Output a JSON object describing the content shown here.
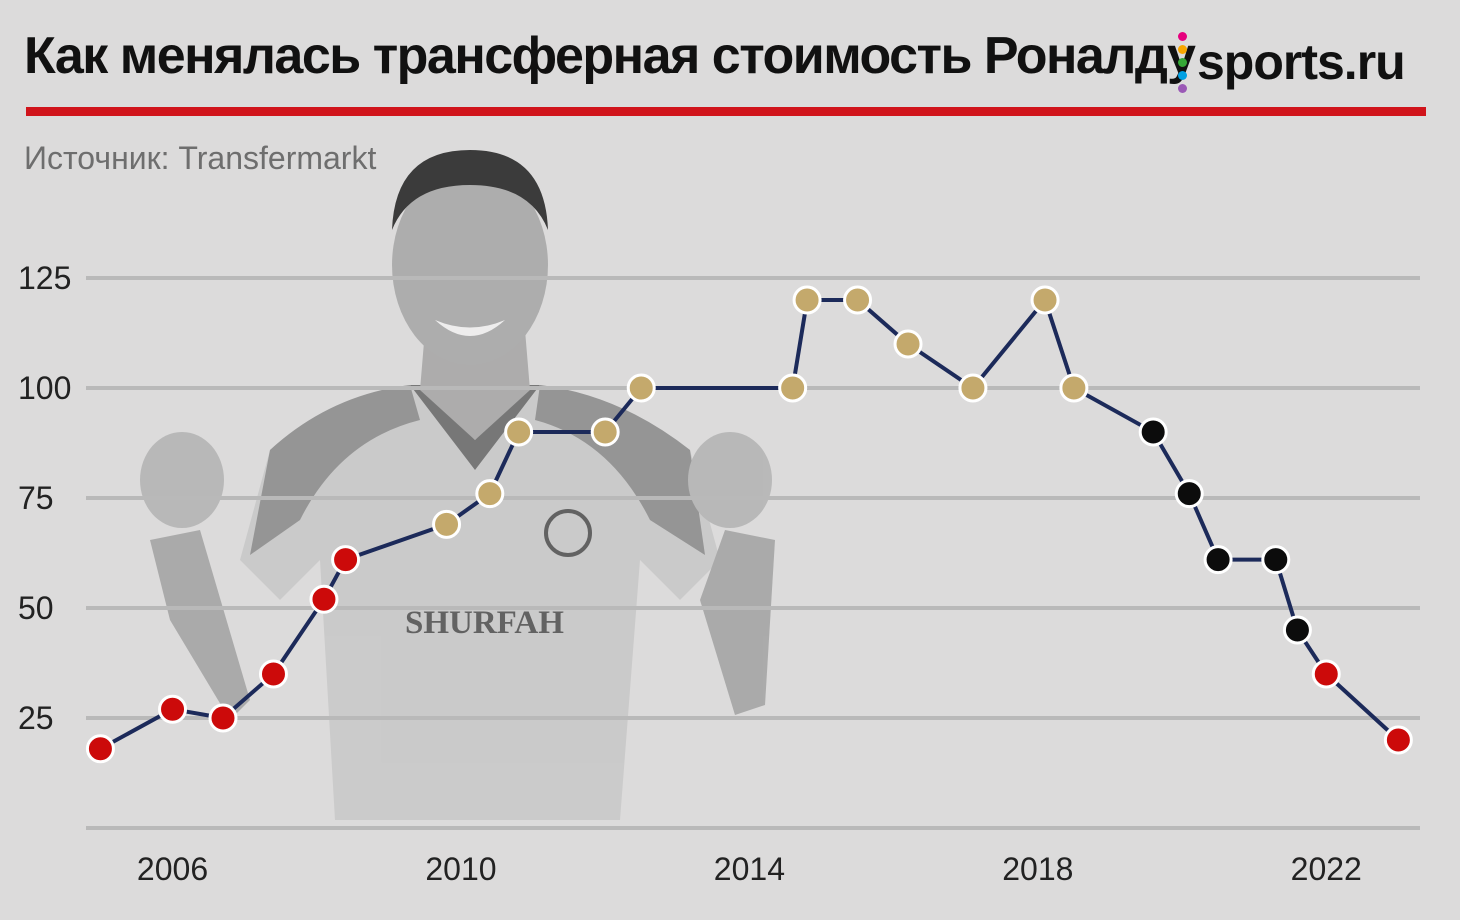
{
  "header": {
    "title": "Как менялась трансферная стоимость Роналду",
    "source": "Источник: Transfermarkt",
    "accent_color": "#d0141b"
  },
  "logo": {
    "text": "sports.ru",
    "dot_colors": [
      "#e6007e",
      "#f7a600",
      "#35a836",
      "#00a0e3",
      "#9b59b6"
    ]
  },
  "background_image": {
    "description_icon": "player-photo-icon",
    "jersey_text": "SHURFAH"
  },
  "chart_data": {
    "type": "line",
    "title": "Как менялась трансферная стоимость Роналду",
    "xlabel": "",
    "ylabel": "",
    "x_ticks": [
      "2006",
      "2010",
      "2014",
      "2018",
      "2022"
    ],
    "y_ticks": [
      25,
      50,
      75,
      100,
      125
    ],
    "xlim": [
      2004.8,
      2023.3
    ],
    "ylim": [
      0,
      125
    ],
    "grid": true,
    "line_color": "#1c2a5a",
    "marker_colors": {
      "red": "#cc0a0a",
      "gold": "#c4a96c",
      "black": "#0c0c0c"
    },
    "points": [
      {
        "x": 2005.0,
        "y": 18,
        "color": "red"
      },
      {
        "x": 2006.0,
        "y": 27,
        "color": "red"
      },
      {
        "x": 2006.7,
        "y": 25,
        "color": "red"
      },
      {
        "x": 2007.4,
        "y": 35,
        "color": "red"
      },
      {
        "x": 2008.1,
        "y": 52,
        "color": "red"
      },
      {
        "x": 2008.4,
        "y": 61,
        "color": "red"
      },
      {
        "x": 2009.8,
        "y": 69,
        "color": "gold"
      },
      {
        "x": 2010.4,
        "y": 76,
        "color": "gold"
      },
      {
        "x": 2010.8,
        "y": 90,
        "color": "gold"
      },
      {
        "x": 2012.0,
        "y": 90,
        "color": "gold"
      },
      {
        "x": 2012.5,
        "y": 100,
        "color": "gold"
      },
      {
        "x": 2014.6,
        "y": 100,
        "color": "gold"
      },
      {
        "x": 2014.8,
        "y": 120,
        "color": "gold"
      },
      {
        "x": 2015.5,
        "y": 120,
        "color": "gold"
      },
      {
        "x": 2016.2,
        "y": 110,
        "color": "gold"
      },
      {
        "x": 2017.1,
        "y": 100,
        "color": "gold"
      },
      {
        "x": 2018.1,
        "y": 120,
        "color": "gold"
      },
      {
        "x": 2018.5,
        "y": 100,
        "color": "gold"
      },
      {
        "x": 2019.6,
        "y": 90,
        "color": "black"
      },
      {
        "x": 2020.1,
        "y": 76,
        "color": "black"
      },
      {
        "x": 2020.5,
        "y": 61,
        "color": "black"
      },
      {
        "x": 2021.3,
        "y": 61,
        "color": "black"
      },
      {
        "x": 2021.6,
        "y": 45,
        "color": "black"
      },
      {
        "x": 2022.0,
        "y": 35,
        "color": "red"
      },
      {
        "x": 2023.0,
        "y": 20,
        "color": "red"
      }
    ]
  }
}
